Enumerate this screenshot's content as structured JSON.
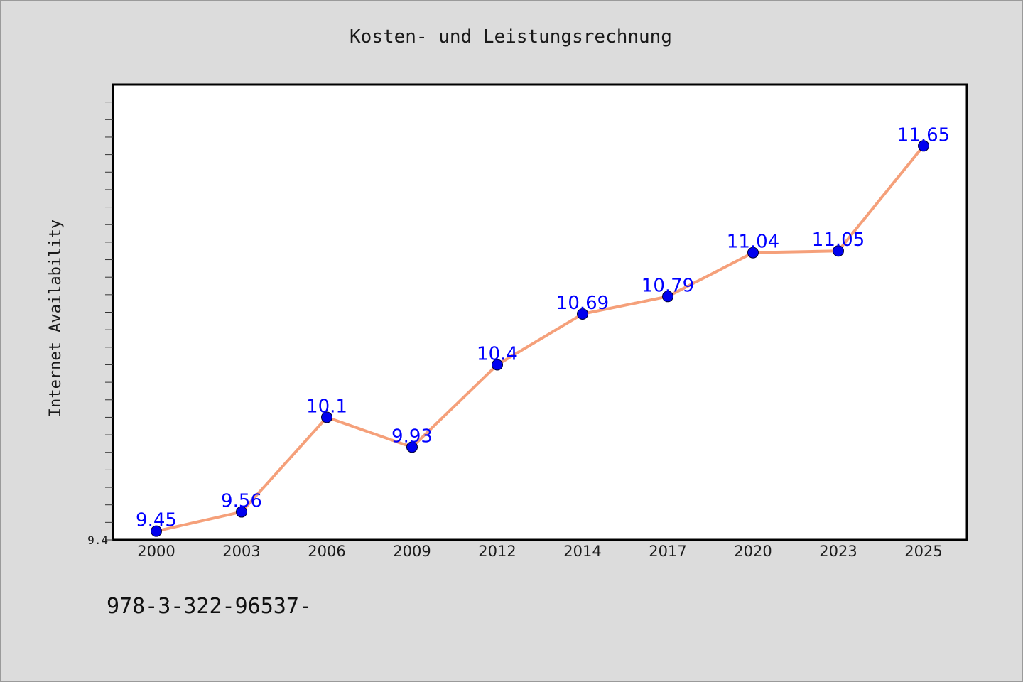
{
  "chart_data": {
    "type": "line",
    "title": "Kosten- und Leistungsrechnung",
    "xlabel": "",
    "ylabel": "Internet Availability",
    "categories": [
      "2000",
      "2003",
      "2006",
      "2009",
      "2012",
      "2014",
      "2017",
      "2020",
      "2023",
      "2025"
    ],
    "series": [
      {
        "values": [
          9.45,
          9.56,
          10.1,
          9.93,
          10.4,
          10.69,
          10.79,
          11.04,
          11.05,
          11.65
        ]
      }
    ],
    "data_labels": [
      "9.45",
      "9.56",
      "10.1",
      "9.93",
      "10.4",
      "10.69",
      "10.79",
      "11.04",
      "11.05",
      "11.65"
    ],
    "ylim": [
      9.4,
      12.0
    ],
    "yticks_labeled": [
      "9.4"
    ],
    "grid": false,
    "legend": "none",
    "colors": {
      "line": "#f5a07a",
      "marker": "#0000ee",
      "label": "#0000ff",
      "background": "#dcdcdc",
      "plot_bg": "#ffffff"
    }
  },
  "footer_text": "978-3-322-96537-"
}
